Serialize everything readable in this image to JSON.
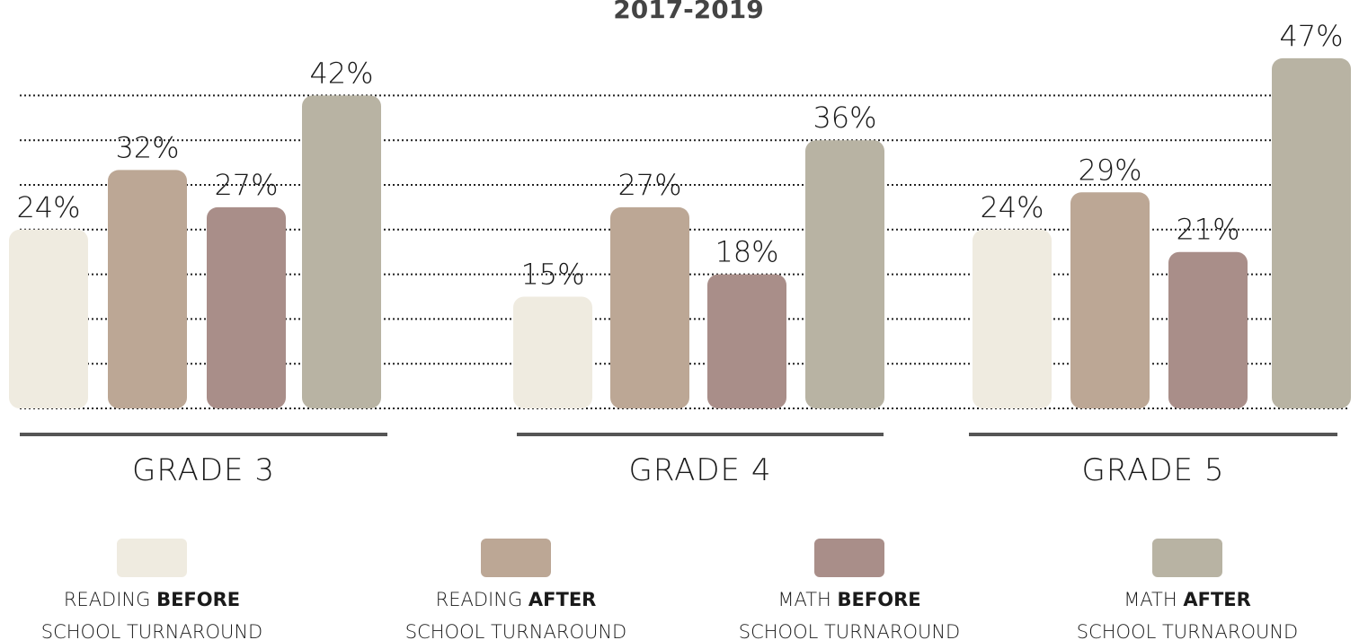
{
  "chart_data": {
    "type": "bar",
    "title": "2017-2019",
    "categories": [
      "GRADE 3",
      "GRADE 4",
      "GRADE 5"
    ],
    "series": [
      {
        "name": "READING BEFORE SCHOOL TURNAROUND",
        "color": "#efebe0",
        "values": [
          24,
          15,
          24
        ],
        "value_labels": [
          "24%",
          "15%",
          "24%"
        ]
      },
      {
        "name": "READING AFTER SCHOOL TURNAROUND",
        "color": "#bca795",
        "values": [
          32,
          27,
          29
        ],
        "value_labels": [
          "32%",
          "27%",
          "29%"
        ]
      },
      {
        "name": "MATH BEFORE SCHOOL TURNAROUND",
        "color": "#a98e89",
        "values": [
          27,
          18,
          21
        ],
        "value_labels": [
          "27%",
          "18%",
          "21%"
        ]
      },
      {
        "name": "MATH AFTER SCHOOL TURNAROUND",
        "color": "#b8b3a3",
        "values": [
          42,
          36,
          47
        ],
        "value_labels": [
          "42%",
          "36%",
          "47%"
        ]
      }
    ],
    "ylim": [
      0,
      50
    ],
    "yticks": [
      0,
      6,
      12,
      18,
      24,
      30,
      36,
      42
    ],
    "grid": true
  }
}
